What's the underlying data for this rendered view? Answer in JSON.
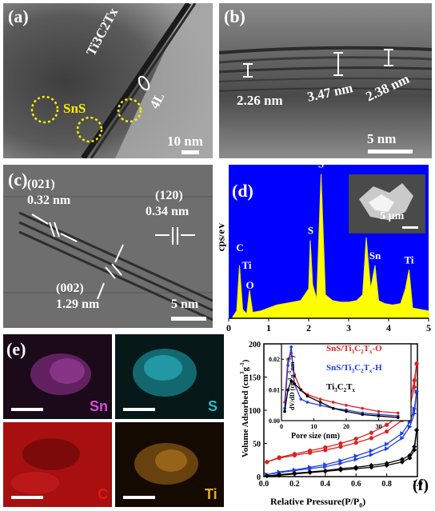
{
  "figure": {
    "panels": {
      "a": {
        "label": "(a)",
        "material_label": "Ti3C2Tx",
        "layers_label": "4L",
        "sns_label": "SnS",
        "scale_text": "10 nm"
      },
      "b": {
        "label": "(b)",
        "spacings": [
          "2.26 nm",
          "3.47 nm",
          "2.38 nm"
        ],
        "scale_text": "5 nm"
      },
      "c": {
        "label": "(c)",
        "plane_021": "(021)",
        "d_021": "0.32 nm",
        "plane_120": "(120)",
        "d_120": "0.34 nm",
        "plane_002": "(002)",
        "d_002": "1.29 nm",
        "scale_text": "5 nm"
      },
      "d": {
        "label": "(d)",
        "inset_scale": "5 µm",
        "colors": {
          "background": "#0000ff",
          "spectrum": "#ffff00"
        }
      },
      "e": {
        "label": "(e)",
        "maps": [
          {
            "element": "Sn",
            "color": "#d64fd6"
          },
          {
            "element": "S",
            "color": "#2fb8c8"
          },
          {
            "element": "C",
            "color": "#e01818"
          },
          {
            "element": "Ti",
            "color": "#e0b020"
          }
        ]
      },
      "f": {
        "label": "(f)"
      }
    }
  },
  "chart_data": [
    {
      "panel": "d",
      "type": "line",
      "ylabel": "cps/eV",
      "xlim": [
        0,
        5
      ],
      "x_ticks": [
        "0",
        "1",
        "2",
        "3",
        "4",
        "5"
      ],
      "series": [
        {
          "x": [
            0.1,
            0.2,
            0.27,
            0.35,
            0.45,
            0.52,
            0.6,
            0.8,
            1.0,
            1.2,
            1.4,
            1.6,
            1.8,
            2.0,
            2.04,
            2.1,
            2.2,
            2.31,
            2.42,
            2.6,
            2.8,
            3.0,
            3.2,
            3.35,
            3.44,
            3.55,
            3.66,
            3.75,
            3.9,
            4.1,
            4.3,
            4.42,
            4.51,
            4.6,
            4.8,
            5.0
          ],
          "y": [
            0.01,
            0.05,
            0.36,
            0.06,
            0.03,
            0.19,
            0.04,
            0.05,
            0.07,
            0.09,
            0.1,
            0.11,
            0.12,
            0.2,
            0.53,
            0.23,
            0.13,
            0.98,
            0.16,
            0.12,
            0.11,
            0.11,
            0.12,
            0.16,
            0.55,
            0.2,
            0.36,
            0.12,
            0.1,
            0.09,
            0.1,
            0.2,
            0.33,
            0.07,
            0.06,
            0.05
          ]
        }
      ],
      "annotations": [
        {
          "text": "C",
          "x": 0.28
        },
        {
          "text": "Ti",
          "x": 0.45
        },
        {
          "text": "O",
          "x": 0.53
        },
        {
          "text": "S",
          "x": 2.05
        },
        {
          "text": "S",
          "x": 2.31
        },
        {
          "text": "Sn",
          "x": 3.44
        },
        {
          "text": "Sn",
          "x": 3.66
        },
        {
          "text": "Ti",
          "x": 4.51
        }
      ]
    },
    {
      "panel": "f",
      "type": "line",
      "xlabel": "Relative Pressure(P/P",
      "xlabel_sub": "0",
      "xlabel_end": ")",
      "ylabel": "Volume Adsorbed (cm",
      "ylabel_sup": "3",
      "ylabel_g": "g",
      "ylabel_sup2": "-1",
      "ylabel_end": ")",
      "xlim": [
        0,
        1
      ],
      "ylim": [
        0,
        200
      ],
      "x_ticks": [
        "0.0",
        "0.2",
        "0.4",
        "0.6",
        "0.8",
        "1.0"
      ],
      "y_ticks": [
        "0",
        "50",
        "100",
        "150",
        "200"
      ],
      "series": [
        {
          "name": "SnS/Ti3C2Tx-O",
          "color": "#e02020",
          "marker": "circle",
          "x": [
            0.02,
            0.1,
            0.2,
            0.3,
            0.4,
            0.5,
            0.6,
            0.7,
            0.8,
            0.9,
            0.95,
            0.98,
            0.995
          ],
          "y": [
            22,
            28,
            32,
            36,
            40,
            45,
            51,
            58,
            68,
            85,
            105,
            135,
            170
          ],
          "y_desorption": [
            22,
            29,
            34,
            39,
            44,
            50,
            57,
            66,
            78,
            95,
            115,
            145,
            170
          ]
        },
        {
          "name": "SnS/Ti3C2Tx-H",
          "color": "#2040e0",
          "marker": "triangle-right",
          "x": [
            0.02,
            0.1,
            0.2,
            0.3,
            0.4,
            0.5,
            0.6,
            0.7,
            0.8,
            0.9,
            0.95,
            0.98,
            0.995
          ],
          "y": [
            3,
            6,
            9,
            12,
            15,
            20,
            26,
            33,
            42,
            58,
            75,
            95,
            128
          ],
          "y_desorption": [
            3,
            7,
            10,
            14,
            18,
            24,
            31,
            39,
            49,
            65,
            82,
            102,
            128
          ]
        },
        {
          "name": "Ti3C2Tx",
          "color": "#000000",
          "marker": "diamond",
          "x": [
            0.02,
            0.1,
            0.2,
            0.3,
            0.4,
            0.5,
            0.6,
            0.7,
            0.8,
            0.9,
            0.95,
            0.98,
            0.995
          ],
          "y": [
            1,
            2,
            4,
            6,
            8,
            10,
            12,
            14,
            17,
            22,
            28,
            40,
            70
          ],
          "y_desorption": [
            1,
            3,
            5,
            7,
            9,
            12,
            14,
            17,
            20,
            26,
            32,
            45,
            70
          ]
        }
      ],
      "legend": [
        {
          "main": "SnS/Ti",
          "sub1": "3",
          "mid": "C",
          "sub2": "2",
          "end": "T",
          "sub3": "x",
          "suffix": "-O"
        },
        {
          "main": "SnS/Ti",
          "sub1": "3",
          "mid": "C",
          "sub2": "2",
          "end": "T",
          "sub3": "x",
          "suffix": "-H"
        },
        {
          "main": "Ti",
          "sub1": "3",
          "mid": "C",
          "sub2": "2",
          "end": "T",
          "sub3": "x",
          "suffix": ""
        }
      ],
      "inset": {
        "type": "line",
        "xlabel": "Pore size (nm)",
        "ylabel": "dV/dD (cm",
        "ylabel_sup": "3",
        "ylabel_g": "g",
        "ylabel_sup2": "-1",
        "ylabel_nm": "nm",
        "ylabel_sup3": "-1",
        "ylabel_end": ")",
        "xlim": [
          0,
          40
        ],
        "ylim": [
          0,
          0.025
        ],
        "x_ticks": [
          "0",
          "10",
          "20",
          "30"
        ],
        "y_ticks": [
          "0.00",
          "0.01",
          "0.02"
        ],
        "series": [
          {
            "name": "SnS/Ti3C2Tx-O",
            "color": "#e02020",
            "x": [
              1,
              2,
              3,
              4,
              6,
              8,
              12,
              16,
              20,
              25,
              30,
              36
            ],
            "y": [
              0.006,
              0.02,
              0.022,
              0.015,
              0.01,
              0.0085,
              0.007,
              0.006,
              0.005,
              0.004,
              0.003,
              0.0025
            ]
          },
          {
            "name": "SnS/Ti3C2Tx-H",
            "color": "#2040e0",
            "x": [
              1,
              2,
              3,
              4,
              6,
              8,
              12,
              16,
              20,
              25,
              30,
              36
            ],
            "y": [
              0.004,
              0.018,
              0.024,
              0.012,
              0.007,
              0.006,
              0.005,
              0.004,
              0.0035,
              0.0025,
              0.002,
              0.0015
            ]
          },
          {
            "name": "Ti3C2Tx",
            "color": "#000000",
            "x": [
              1,
              2,
              3,
              4,
              6,
              8,
              12,
              16,
              20,
              25,
              30,
              36
            ],
            "y": [
              0.003,
              0.01,
              0.013,
              0.012,
              0.01,
              0.008,
              0.006,
              0.004,
              0.003,
              0.002,
              0.0015,
              0.001
            ]
          }
        ]
      }
    }
  ]
}
